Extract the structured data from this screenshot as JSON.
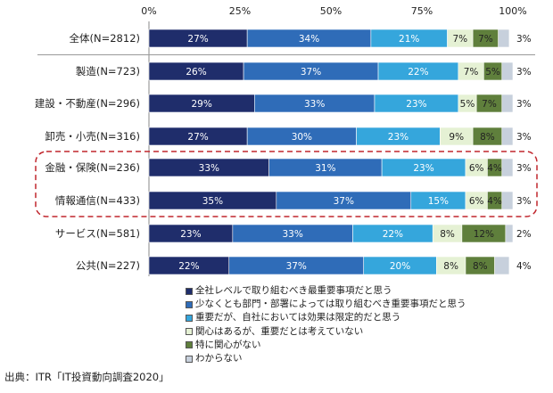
{
  "chart_data": {
    "type": "bar",
    "orientation": "horizontal",
    "stacked": true,
    "percent": true,
    "xlim": [
      0,
      100
    ],
    "x_ticks": [
      "0%",
      "25%",
      "50%",
      "75%",
      "100%"
    ],
    "categories": [
      "全体(N=2812)",
      "製造(N=723)",
      "建設・不動産(N=296)",
      "卸売・小売(N=316)",
      "金融・保険(N=236)",
      "情報通信(N=433)",
      "サービス(N=581)",
      "公共(N=227)"
    ],
    "series": [
      {
        "name": "全社レベルで取り組むべき最重要事項だと思う",
        "color": "#1f2d6b",
        "values": [
          27,
          26,
          29,
          27,
          33,
          35,
          23,
          22
        ]
      },
      {
        "name": "少なくとも部門・部署によっては取り組むべき重要事項だと思う",
        "color": "#2f6cb8",
        "values": [
          34,
          37,
          33,
          30,
          31,
          37,
          33,
          37
        ]
      },
      {
        "name": "重要だが、自社においては効果は限定的だと思う",
        "color": "#35a6dc",
        "values": [
          21,
          22,
          23,
          23,
          23,
          15,
          22,
          20
        ]
      },
      {
        "name": "関心はあるが、重要だとは考えていない",
        "color": "#e5f1d4",
        "values": [
          7,
          7,
          5,
          9,
          6,
          6,
          8,
          8
        ]
      },
      {
        "name": "特に関心がない",
        "color": "#5f7f3c",
        "values": [
          7,
          5,
          7,
          8,
          4,
          4,
          12,
          8
        ]
      },
      {
        "name": "わからない",
        "color": "#c7d0dc",
        "values": [
          3,
          3,
          3,
          3,
          3,
          3,
          2,
          4
        ]
      }
    ],
    "value_labels": [
      [
        "27%",
        "34%",
        "21%",
        "7%",
        "7%",
        "3%"
      ],
      [
        "26%",
        "37%",
        "22%",
        "7%",
        "5%",
        "3%"
      ],
      [
        "29%",
        "33%",
        "23%",
        "5%",
        "7%",
        "3%"
      ],
      [
        "27%",
        "30%",
        "23%",
        "9%",
        "8%",
        "3%"
      ],
      [
        "33%",
        "31%",
        "23%",
        "6%",
        "4%",
        "3%"
      ],
      [
        "35%",
        "37%",
        "15%",
        "6%",
        "4%",
        "3%"
      ],
      [
        "23%",
        "33%",
        "22%",
        "8%",
        "12%",
        "2%"
      ],
      [
        "22%",
        "37%",
        "20%",
        "8%",
        "8%",
        "4%"
      ]
    ],
    "highlighted_categories": [
      "金融・保険(N=236)",
      "情報通信(N=433)"
    ],
    "legend_position": "bottom"
  },
  "source": "出典：ITR「IT投資動向調査2020」"
}
